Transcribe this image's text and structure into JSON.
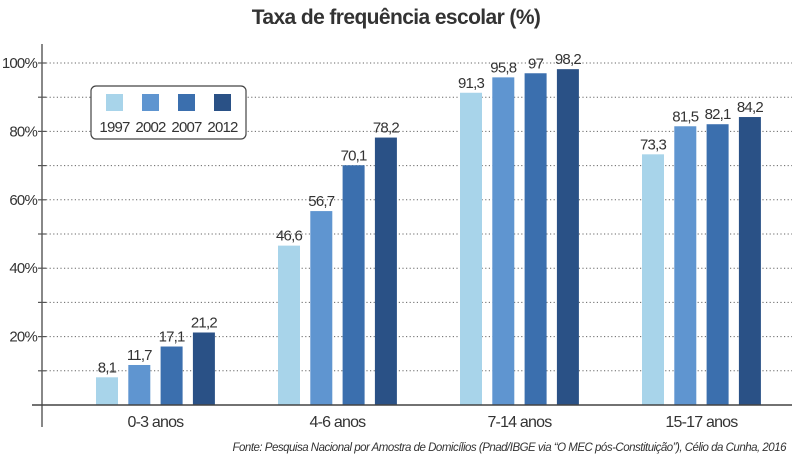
{
  "chart_data": {
    "type": "bar",
    "title": "Taxa de frequência escolar (%)",
    "xlabel": "",
    "ylabel": "",
    "categories": [
      "0-3 anos",
      "4-6 anos",
      "7-14 anos",
      "15-17 anos"
    ],
    "series": [
      {
        "name": "1997",
        "color": "#a8d4ea",
        "values": [
          8.1,
          46.6,
          91.3,
          73.3
        ],
        "labels": [
          "8,1",
          "46,6",
          "91,3",
          "73,3"
        ]
      },
      {
        "name": "2002",
        "color": "#5f95d0",
        "values": [
          11.7,
          56.7,
          95.8,
          81.5
        ],
        "labels": [
          "11,7",
          "56,7",
          "95,8",
          "81,5"
        ]
      },
      {
        "name": "2007",
        "color": "#3b6fae",
        "values": [
          17.1,
          70.1,
          97,
          82.1
        ],
        "labels": [
          "17,1",
          "70,1",
          "97",
          "82,1"
        ]
      },
      {
        "name": "2012",
        "color": "#2a5186",
        "values": [
          21.2,
          78.2,
          98.2,
          84.2
        ],
        "labels": [
          "21,2",
          "78,2",
          "98,2",
          "84,2"
        ]
      }
    ],
    "ylim": [
      0,
      100
    ],
    "yticks": [
      20,
      40,
      60,
      80,
      100
    ],
    "ytick_labels": [
      "20%",
      "40%",
      "60%",
      "80%",
      "100%"
    ],
    "minor_yticks": [
      10,
      30,
      50,
      70,
      90
    ],
    "grid": true,
    "grid_style": "dotted",
    "legend": {
      "placement": "top-left",
      "entries": [
        "1997",
        "2002",
        "2007",
        "2012"
      ]
    },
    "source": "Fonte: Pesquisa Nacional por Amostra de Domicílios (Pnad/IBGE via “O MEC pós-Constituição”), Célio da Cunha, 2016"
  }
}
